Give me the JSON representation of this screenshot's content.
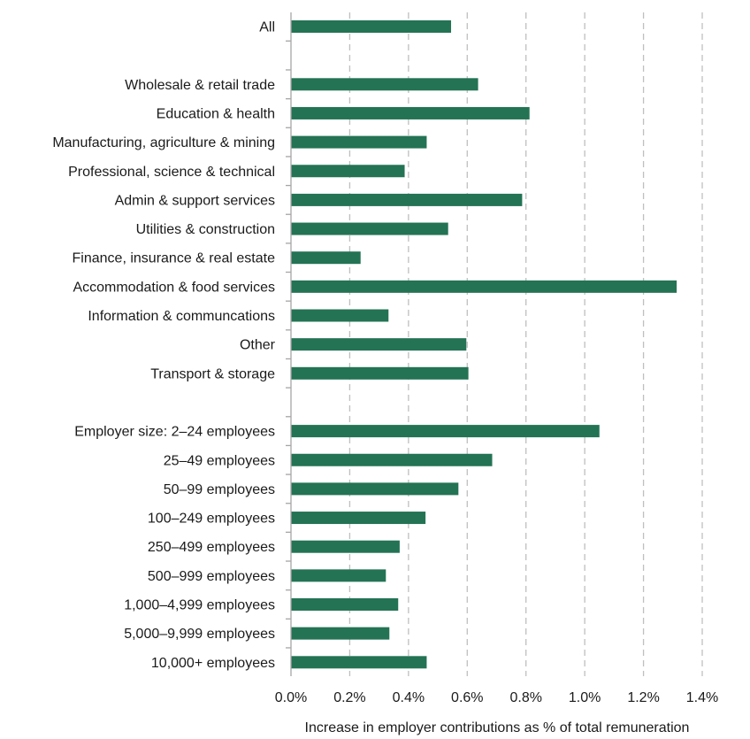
{
  "chart_data": {
    "type": "bar",
    "orientation": "horizontal",
    "title": "",
    "xlabel": "Increase in employer contributions as % of total remuneration",
    "ylabel": "",
    "xlim": [
      0,
      1.4
    ],
    "x_tick_values": [
      0,
      0.2,
      0.4,
      0.6,
      0.8,
      1.0,
      1.2,
      1.4
    ],
    "x_tick_labels": [
      "0.0%",
      "0.2%",
      "0.4%",
      "0.6%",
      "0.8%",
      "1.0%",
      "1.2%",
      "1.4%"
    ],
    "grid": "vertical dashed",
    "legend": "none",
    "bar_color": "#237354",
    "categories": [
      "All",
      "",
      "Wholesale & retail trade",
      "Education & health",
      "Manufacturing, agriculture & mining",
      "Professional, science & technical",
      "Admin & support services",
      "Utilities & construction",
      "Finance, insurance & real estate",
      "Accommodation & food services",
      "Information & communcations",
      "Other",
      "Transport & storage",
      "",
      "Employer size: 2–24 employees",
      "25–49 employees",
      "50–99 employees",
      "100–249 employees",
      "250–499 employees",
      "500–999 employees",
      "1,000–4,999 employees",
      "5,000–9,999 employees",
      "10,000+ employees"
    ],
    "values": [
      0.545,
      null,
      0.637,
      0.812,
      0.462,
      0.387,
      0.787,
      0.535,
      0.237,
      1.313,
      0.332,
      0.597,
      0.604,
      null,
      1.05,
      0.685,
      0.57,
      0.458,
      0.37,
      0.323,
      0.365,
      0.335,
      0.462
    ]
  }
}
